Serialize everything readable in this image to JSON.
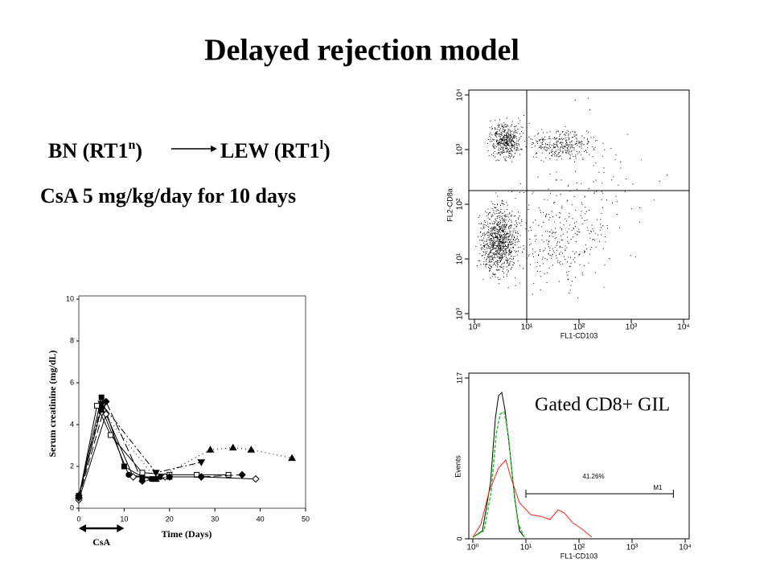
{
  "title": "Delayed rejection model",
  "transplant": {
    "donor": "BN (RT1",
    "donor_sup": "n",
    "donor_close": ")",
    "recipient": "LEW (RT1",
    "recipient_sup": "l",
    "recipient_close": ")"
  },
  "regimen": "CsA 5 mg/kg/day for 10 days",
  "line_chart": {
    "type": "line",
    "xlabel": "Time (Days)",
    "ylabel": "Serum creatinine (mg/dL)",
    "xlim": [
      0,
      50
    ],
    "xticks": [
      0,
      10,
      20,
      30,
      40,
      50
    ],
    "ylim": [
      0,
      10
    ],
    "yticks": [
      0,
      2,
      4,
      6,
      8,
      10
    ],
    "annotation": {
      "text": "CsA",
      "x_range": [
        0,
        10
      ]
    },
    "series": [
      {
        "marker": "square",
        "dash": "solid",
        "x": [
          0,
          5,
          10,
          14,
          17,
          20
        ],
        "values": [
          0.6,
          5.3,
          2.0,
          1.5,
          1.4,
          1.5
        ]
      },
      {
        "marker": "circle",
        "dash": "solid",
        "x": [
          0,
          5,
          11,
          14,
          16,
          18
        ],
        "values": [
          0.6,
          4.8,
          1.6,
          1.5,
          1.4,
          1.5
        ]
      },
      {
        "marker": "open-square",
        "dash": "solid",
        "x": [
          0,
          4,
          7,
          14,
          20,
          26,
          33
        ],
        "values": [
          0.5,
          4.9,
          3.5,
          1.7,
          1.6,
          1.6,
          1.6
        ]
      },
      {
        "marker": "open-diamond",
        "dash": "solid",
        "x": [
          0,
          6,
          12,
          19,
          27,
          39
        ],
        "values": [
          0.4,
          4.5,
          1.5,
          1.5,
          1.5,
          1.4
        ]
      },
      {
        "marker": "diamond",
        "dash": "longdash",
        "x": [
          0,
          6,
          14,
          20,
          27,
          36
        ],
        "values": [
          0.5,
          5.1,
          1.3,
          1.5,
          1.5,
          1.6
        ]
      },
      {
        "marker": "triangle",
        "dash": "dotted",
        "x": [
          0,
          5,
          17,
          29,
          34,
          38,
          47
        ],
        "values": [
          0.6,
          4.7,
          1.4,
          2.8,
          2.9,
          2.8,
          2.4
        ]
      },
      {
        "marker": "triangle-down",
        "dash": "dashdot",
        "x": [
          0,
          5,
          17,
          27
        ],
        "values": [
          0.5,
          5.0,
          1.7,
          2.2
        ]
      }
    ]
  },
  "scatter_plot": {
    "type": "scatter",
    "xlabel": "FL1-CD103",
    "ylabel": "FL2-CD8a",
    "log_scale": true,
    "xlim": [
      1,
      10000
    ],
    "ylim": [
      1,
      10000
    ],
    "xticks": [
      {
        "value": 1,
        "label": "10⁰"
      },
      {
        "value": 10,
        "label": "10¹"
      },
      {
        "value": 100,
        "label": "10²"
      },
      {
        "value": 1000,
        "label": "10³"
      },
      {
        "value": 10000,
        "label": "10⁴"
      }
    ],
    "yticks": [
      {
        "value": 1,
        "label": "10⁰"
      },
      {
        "value": 10,
        "label": "10¹"
      },
      {
        "value": 100,
        "label": "10²"
      },
      {
        "value": 1000,
        "label": "10³"
      },
      {
        "value": 10000,
        "label": "10⁴"
      }
    ],
    "gates": {
      "x": 10,
      "y": 178
    }
  },
  "histogram": {
    "type": "histogram",
    "title": "Gated CD8+ GIL",
    "xlabel": "FL1-CD103",
    "ylabel": "Events",
    "log_scale": true,
    "xlim": [
      1,
      10000
    ],
    "ylim": [
      0,
      117
    ],
    "xticks": [
      {
        "value": 1,
        "label": "10⁰"
      },
      {
        "value": 10,
        "label": "10¹"
      },
      {
        "value": 100,
        "label": "10²"
      },
      {
        "value": 1000,
        "label": "10³"
      },
      {
        "value": 10000,
        "label": "10⁴"
      }
    ],
    "yticks": [
      0,
      117
    ],
    "marker": {
      "label": "M1",
      "range": [
        10,
        6000
      ],
      "percent_label": "41.26%"
    }
  }
}
